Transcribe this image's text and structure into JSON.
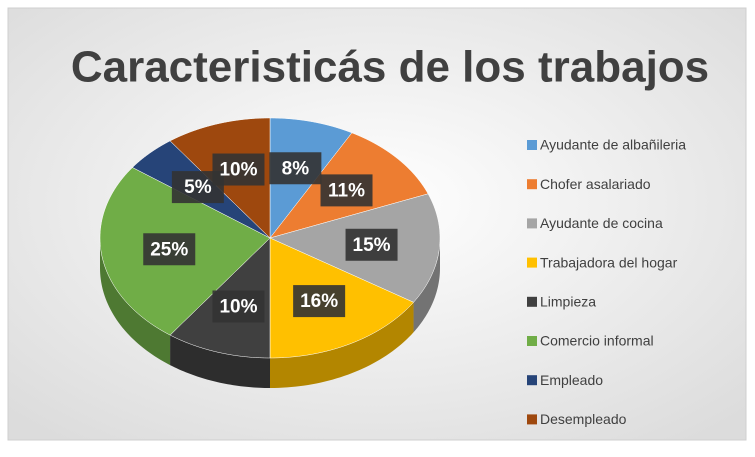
{
  "chart_data": {
    "type": "pie3d",
    "title": "Caracteristicás de los trabajos",
    "categories": [
      "Ayudante de albañileria",
      "Chofer asalariado",
      "Ayudante de cocina",
      "Trabajadora del hogar",
      "Limpieza",
      "Comercio informal",
      "Empleado",
      "Desempleado"
    ],
    "values": [
      8,
      11,
      15,
      16,
      10,
      25,
      5,
      10
    ],
    "value_labels": [
      "8%",
      "11%",
      "15%",
      "16%",
      "10%",
      "25%",
      "5%",
      "10%"
    ],
    "colors": [
      "#5b9bd5",
      "#ed7d31",
      "#a5a5a5",
      "#ffc000",
      "#404040",
      "#70ad47",
      "#264478",
      "#9e480e"
    ],
    "legend": "right"
  }
}
